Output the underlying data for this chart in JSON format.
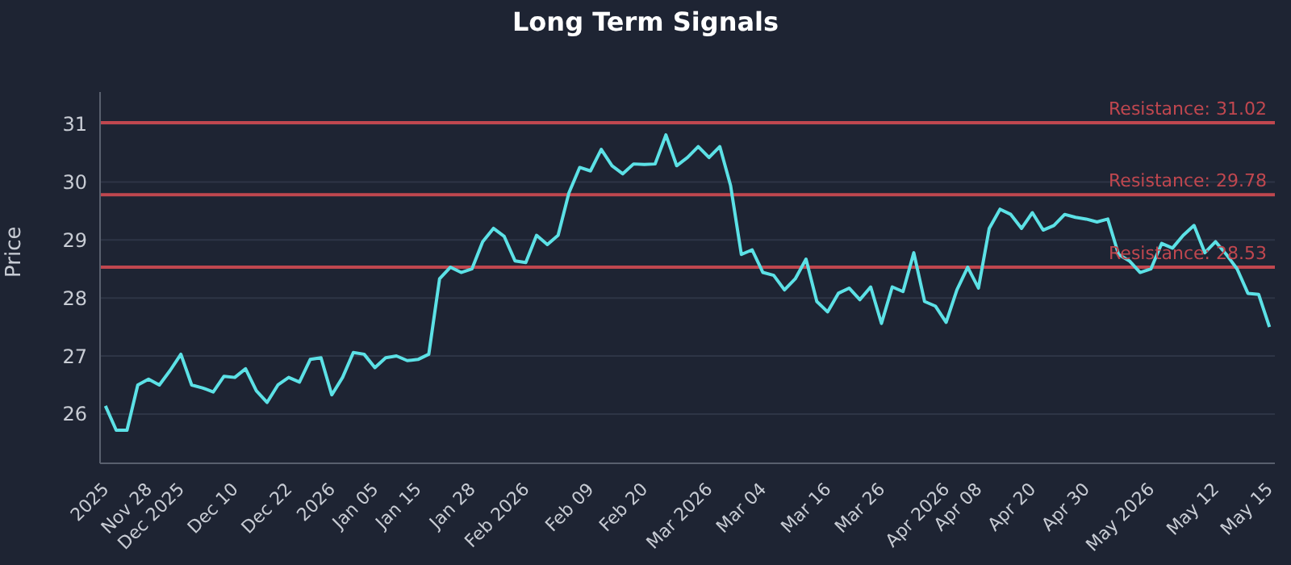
{
  "chart_data": {
    "type": "line",
    "title": "Long Term Signals",
    "ylabel": "Price",
    "categories": [
      "2025",
      null,
      null,
      null,
      "Nov 28",
      null,
      null,
      "Dec 2025",
      null,
      null,
      null,
      null,
      "Dec 10",
      null,
      null,
      null,
      null,
      "Dec 22",
      null,
      null,
      null,
      "2026",
      null,
      null,
      null,
      "Jan 05",
      null,
      null,
      null,
      "Jan 15",
      null,
      null,
      null,
      null,
      "Jan 28",
      null,
      null,
      null,
      null,
      "Feb 2026",
      null,
      null,
      null,
      null,
      null,
      "Feb 09",
      null,
      null,
      null,
      null,
      "Feb 20",
      null,
      null,
      null,
      null,
      null,
      "Mar 2026",
      null,
      null,
      null,
      null,
      "Mar 04",
      null,
      null,
      null,
      null,
      null,
      "Mar 16",
      null,
      null,
      null,
      null,
      "Mar 26",
      null,
      null,
      null,
      null,
      null,
      "Apr 2026",
      null,
      null,
      "Apr 08",
      null,
      null,
      null,
      null,
      "Apr 20",
      null,
      null,
      null,
      null,
      "Apr 30",
      null,
      null,
      null,
      null,
      null,
      "May 2026",
      null,
      null,
      null,
      null,
      null,
      "May 12",
      null,
      null,
      null,
      null,
      "May 15"
    ],
    "series": [
      {
        "color": "#5ce1e6",
        "values": [
          26.14,
          25.72,
          25.72,
          26.5,
          26.6,
          26.5,
          26.75,
          27.03,
          26.5,
          26.45,
          26.38,
          26.65,
          26.63,
          26.78,
          26.4,
          26.2,
          26.5,
          26.63,
          26.55,
          26.94,
          26.97,
          26.33,
          26.63,
          27.06,
          27.03,
          26.8,
          26.97,
          27.0,
          26.92,
          26.94,
          27.03,
          28.33,
          28.53,
          28.44,
          28.5,
          28.97,
          29.2,
          29.06,
          28.64,
          28.61,
          29.08,
          28.92,
          29.08,
          29.81,
          30.25,
          30.19,
          30.56,
          30.28,
          30.14,
          30.31,
          30.3,
          30.31,
          30.81,
          30.28,
          30.42,
          30.61,
          30.42,
          30.61,
          29.94,
          28.75,
          28.83,
          28.44,
          28.39,
          28.14,
          28.33,
          28.67,
          27.94,
          27.76,
          28.08,
          28.17,
          27.97,
          28.19,
          27.56,
          28.19,
          28.11,
          28.78,
          27.94,
          27.86,
          27.58,
          28.14,
          28.53,
          28.17,
          29.2,
          29.53,
          29.44,
          29.2,
          29.47,
          29.17,
          29.25,
          29.44,
          29.39,
          29.36,
          29.31,
          29.36,
          28.75,
          28.64,
          28.44,
          28.5,
          28.94,
          28.86,
          29.08,
          29.25,
          28.78,
          28.97,
          28.75,
          28.5,
          28.08,
          28.06,
          27.5
        ]
      }
    ],
    "ylim": [
      25.15,
      31.55
    ],
    "yticks": [
      26,
      27,
      28,
      29,
      30,
      31
    ],
    "grid": "y",
    "marker": "none",
    "line_style": "solid",
    "ref_lines": [
      {
        "axis": "y",
        "value": 31.02,
        "label": "Resistance: 31.02",
        "color": "#c0474f"
      },
      {
        "axis": "y",
        "value": 29.78,
        "label": "Resistance: 29.78",
        "color": "#c0474f"
      },
      {
        "axis": "y",
        "value": 28.53,
        "label": "Resistance: 28.53",
        "color": "#c0474f"
      }
    ]
  }
}
